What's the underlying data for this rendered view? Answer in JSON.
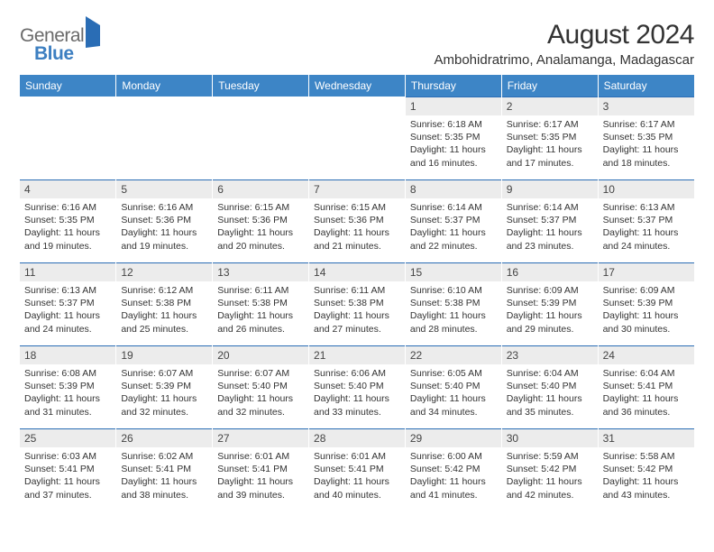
{
  "brand": {
    "general": "General",
    "blue": "Blue"
  },
  "title": {
    "month": "August 2024",
    "location": "Ambohidratrimo, Analamanga, Madagascar"
  },
  "colors": {
    "header_bg": "#3d85c6",
    "daynum_bg": "#ececec",
    "border_top": "#2a6db5"
  },
  "weekdays": [
    "Sunday",
    "Monday",
    "Tuesday",
    "Wednesday",
    "Thursday",
    "Friday",
    "Saturday"
  ],
  "weeks": [
    [
      {
        "n": "",
        "t": ""
      },
      {
        "n": "",
        "t": ""
      },
      {
        "n": "",
        "t": ""
      },
      {
        "n": "",
        "t": ""
      },
      {
        "n": "1",
        "t": "Sunrise: 6:18 AM\nSunset: 5:35 PM\nDaylight: 11 hours and 16 minutes."
      },
      {
        "n": "2",
        "t": "Sunrise: 6:17 AM\nSunset: 5:35 PM\nDaylight: 11 hours and 17 minutes."
      },
      {
        "n": "3",
        "t": "Sunrise: 6:17 AM\nSunset: 5:35 PM\nDaylight: 11 hours and 18 minutes."
      }
    ],
    [
      {
        "n": "4",
        "t": "Sunrise: 6:16 AM\nSunset: 5:35 PM\nDaylight: 11 hours and 19 minutes."
      },
      {
        "n": "5",
        "t": "Sunrise: 6:16 AM\nSunset: 5:36 PM\nDaylight: 11 hours and 19 minutes."
      },
      {
        "n": "6",
        "t": "Sunrise: 6:15 AM\nSunset: 5:36 PM\nDaylight: 11 hours and 20 minutes."
      },
      {
        "n": "7",
        "t": "Sunrise: 6:15 AM\nSunset: 5:36 PM\nDaylight: 11 hours and 21 minutes."
      },
      {
        "n": "8",
        "t": "Sunrise: 6:14 AM\nSunset: 5:37 PM\nDaylight: 11 hours and 22 minutes."
      },
      {
        "n": "9",
        "t": "Sunrise: 6:14 AM\nSunset: 5:37 PM\nDaylight: 11 hours and 23 minutes."
      },
      {
        "n": "10",
        "t": "Sunrise: 6:13 AM\nSunset: 5:37 PM\nDaylight: 11 hours and 24 minutes."
      }
    ],
    [
      {
        "n": "11",
        "t": "Sunrise: 6:13 AM\nSunset: 5:37 PM\nDaylight: 11 hours and 24 minutes."
      },
      {
        "n": "12",
        "t": "Sunrise: 6:12 AM\nSunset: 5:38 PM\nDaylight: 11 hours and 25 minutes."
      },
      {
        "n": "13",
        "t": "Sunrise: 6:11 AM\nSunset: 5:38 PM\nDaylight: 11 hours and 26 minutes."
      },
      {
        "n": "14",
        "t": "Sunrise: 6:11 AM\nSunset: 5:38 PM\nDaylight: 11 hours and 27 minutes."
      },
      {
        "n": "15",
        "t": "Sunrise: 6:10 AM\nSunset: 5:38 PM\nDaylight: 11 hours and 28 minutes."
      },
      {
        "n": "16",
        "t": "Sunrise: 6:09 AM\nSunset: 5:39 PM\nDaylight: 11 hours and 29 minutes."
      },
      {
        "n": "17",
        "t": "Sunrise: 6:09 AM\nSunset: 5:39 PM\nDaylight: 11 hours and 30 minutes."
      }
    ],
    [
      {
        "n": "18",
        "t": "Sunrise: 6:08 AM\nSunset: 5:39 PM\nDaylight: 11 hours and 31 minutes."
      },
      {
        "n": "19",
        "t": "Sunrise: 6:07 AM\nSunset: 5:39 PM\nDaylight: 11 hours and 32 minutes."
      },
      {
        "n": "20",
        "t": "Sunrise: 6:07 AM\nSunset: 5:40 PM\nDaylight: 11 hours and 32 minutes."
      },
      {
        "n": "21",
        "t": "Sunrise: 6:06 AM\nSunset: 5:40 PM\nDaylight: 11 hours and 33 minutes."
      },
      {
        "n": "22",
        "t": "Sunrise: 6:05 AM\nSunset: 5:40 PM\nDaylight: 11 hours and 34 minutes."
      },
      {
        "n": "23",
        "t": "Sunrise: 6:04 AM\nSunset: 5:40 PM\nDaylight: 11 hours and 35 minutes."
      },
      {
        "n": "24",
        "t": "Sunrise: 6:04 AM\nSunset: 5:41 PM\nDaylight: 11 hours and 36 minutes."
      }
    ],
    [
      {
        "n": "25",
        "t": "Sunrise: 6:03 AM\nSunset: 5:41 PM\nDaylight: 11 hours and 37 minutes."
      },
      {
        "n": "26",
        "t": "Sunrise: 6:02 AM\nSunset: 5:41 PM\nDaylight: 11 hours and 38 minutes."
      },
      {
        "n": "27",
        "t": "Sunrise: 6:01 AM\nSunset: 5:41 PM\nDaylight: 11 hours and 39 minutes."
      },
      {
        "n": "28",
        "t": "Sunrise: 6:01 AM\nSunset: 5:41 PM\nDaylight: 11 hours and 40 minutes."
      },
      {
        "n": "29",
        "t": "Sunrise: 6:00 AM\nSunset: 5:42 PM\nDaylight: 11 hours and 41 minutes."
      },
      {
        "n": "30",
        "t": "Sunrise: 5:59 AM\nSunset: 5:42 PM\nDaylight: 11 hours and 42 minutes."
      },
      {
        "n": "31",
        "t": "Sunrise: 5:58 AM\nSunset: 5:42 PM\nDaylight: 11 hours and 43 minutes."
      }
    ]
  ]
}
